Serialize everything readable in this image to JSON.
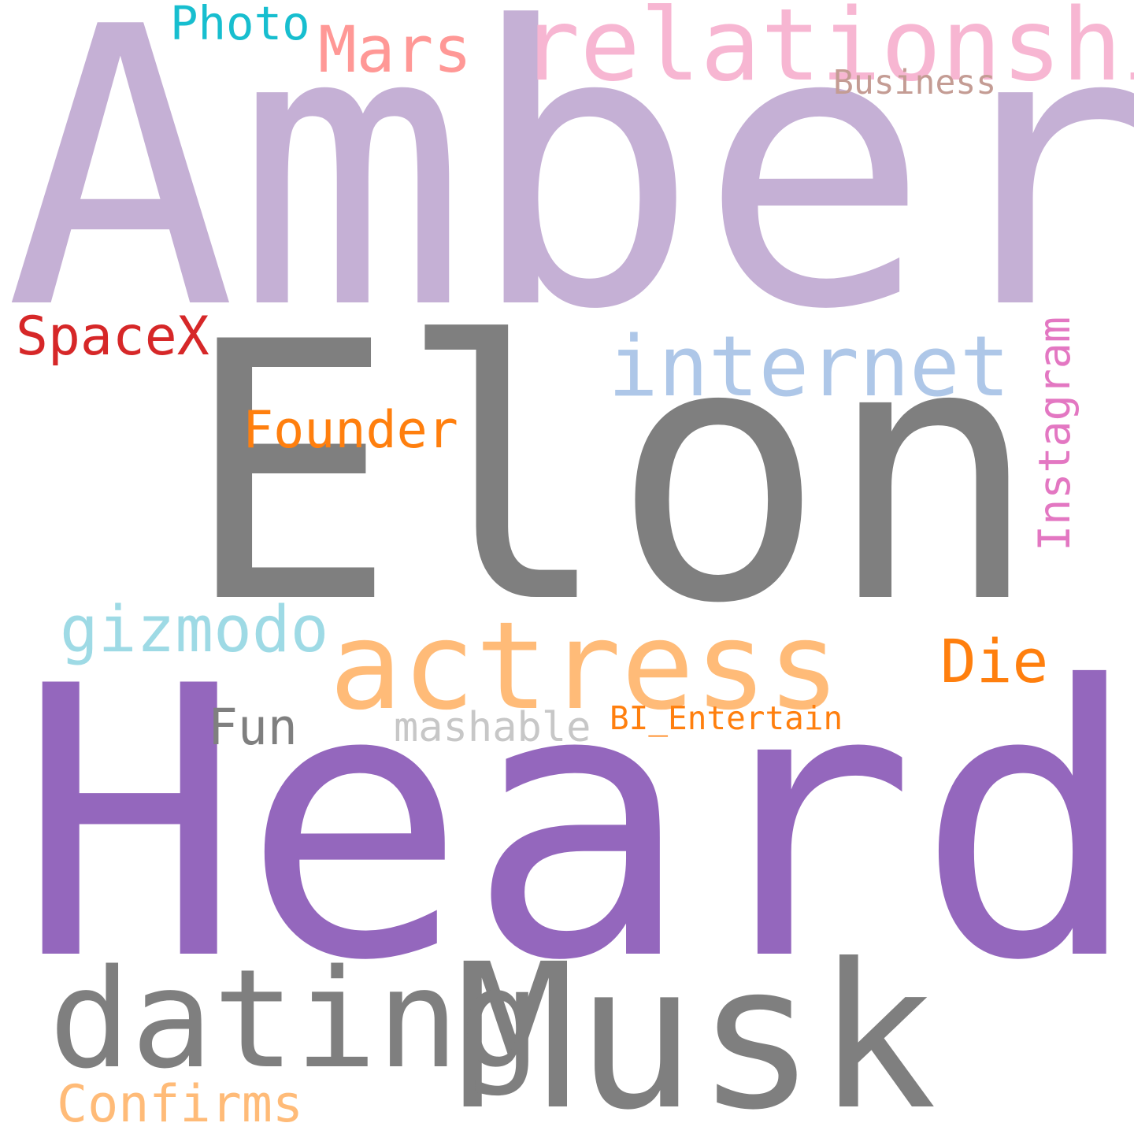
{
  "words": [
    {
      "id": "amber",
      "text": "Amber",
      "color": "#c5b0d5"
    },
    {
      "id": "elon",
      "text": "Elon",
      "color": "#7f7f7f"
    },
    {
      "id": "heard",
      "text": "Heard",
      "color": "#9467bd"
    },
    {
      "id": "musk",
      "text": "Musk",
      "color": "#7f7f7f"
    },
    {
      "id": "dating",
      "text": "dating",
      "color": "#7f7f7f"
    },
    {
      "id": "actress",
      "text": "actress",
      "color": "#ffbb78"
    },
    {
      "id": "relationship",
      "text": "relationship",
      "color": "#f7b6d2"
    },
    {
      "id": "internet",
      "text": "internet",
      "color": "#aec7e8"
    },
    {
      "id": "gizmodo",
      "text": "gizmodo",
      "color": "#9edae5"
    },
    {
      "id": "mars",
      "text": "Mars",
      "color": "#ff9896"
    },
    {
      "id": "founder",
      "text": "Founder",
      "color": "#ff7f0e"
    },
    {
      "id": "die",
      "text": "Die",
      "color": "#ff7f0e"
    },
    {
      "id": "spacex",
      "text": "SpaceX",
      "color": "#d62728"
    },
    {
      "id": "photo",
      "text": "Photo",
      "color": "#17becf"
    },
    {
      "id": "business",
      "text": "Business",
      "color": "#c49c94"
    },
    {
      "id": "instagram",
      "text": "Instagram",
      "color": "#e377c2"
    },
    {
      "id": "fun",
      "text": "Fun",
      "color": "#7f7f7f"
    },
    {
      "id": "mashable",
      "text": "mashable",
      "color": "#c7c7c7"
    },
    {
      "id": "bi_entertain",
      "text": "BI_Entertain",
      "color": "#ff7f0e"
    },
    {
      "id": "confirms",
      "text": "Confirms",
      "color": "#ffbb78"
    }
  ]
}
